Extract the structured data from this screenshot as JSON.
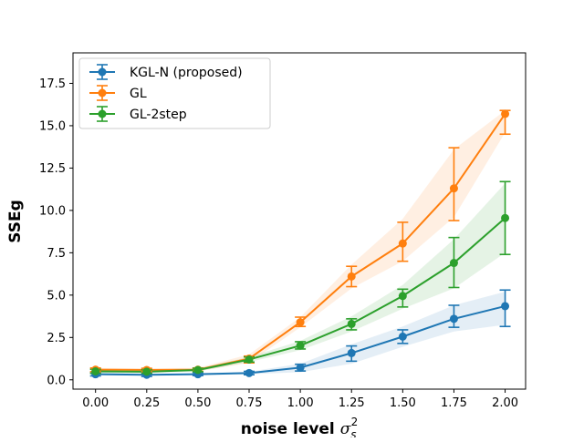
{
  "chart_data": {
    "type": "line",
    "title": "",
    "xlabel": "noise level",
    "xlabel_symbol": "σ",
    "xlabel_sup": "2",
    "xlabel_sub": "s",
    "ylabel": "SSEg",
    "xlim": [
      -0.11,
      2.1
    ],
    "ylim": [
      -0.55,
      19.3
    ],
    "grid": false,
    "legend_position": "top-left",
    "x": [
      0.0,
      0.25,
      0.5,
      0.75,
      1.0,
      1.25,
      1.5,
      1.75,
      2.0
    ],
    "x_tick_labels": [
      "0.00",
      "0.25",
      "0.50",
      "0.75",
      "1.00",
      "1.25",
      "1.50",
      "1.75",
      "2.00"
    ],
    "y_ticks": [
      0.0,
      2.5,
      5.0,
      7.5,
      10.0,
      12.5,
      15.0,
      17.5
    ],
    "y_tick_labels": [
      "0.0",
      "2.5",
      "5.0",
      "7.5",
      "10.0",
      "12.5",
      "15.0",
      "17.5"
    ],
    "series": [
      {
        "name": "KGL-N (proposed)",
        "color": "#1f77b4",
        "values": [
          0.33,
          0.3,
          0.33,
          0.4,
          0.72,
          1.58,
          2.55,
          3.6,
          4.35
        ],
        "err_low": [
          0.23,
          0.2,
          0.25,
          0.3,
          0.52,
          1.1,
          2.15,
          3.1,
          3.15
        ],
        "err_high": [
          0.43,
          0.42,
          0.43,
          0.5,
          0.92,
          2.0,
          2.95,
          4.4,
          5.3
        ],
        "band_low": [
          0.28,
          0.25,
          0.28,
          0.33,
          0.45,
          0.95,
          1.95,
          2.85,
          3.25
        ],
        "band_high": [
          0.4,
          0.36,
          0.4,
          0.48,
          0.95,
          2.1,
          3.15,
          4.4,
          5.2
        ]
      },
      {
        "name": "GL",
        "color": "#ff7f0e",
        "values": [
          0.6,
          0.58,
          0.6,
          1.25,
          3.4,
          6.1,
          8.05,
          11.3,
          15.7
        ],
        "err_low": [
          0.48,
          0.48,
          0.5,
          1.0,
          3.15,
          5.5,
          7.0,
          9.4,
          14.5
        ],
        "err_high": [
          0.7,
          0.68,
          0.7,
          1.4,
          3.7,
          6.7,
          9.3,
          13.7,
          15.9
        ],
        "band_low": [
          0.5,
          0.5,
          0.5,
          1.0,
          3.1,
          5.4,
          7.0,
          9.6,
          14.6
        ],
        "band_high": [
          0.7,
          0.68,
          0.7,
          1.5,
          3.7,
          6.8,
          9.5,
          13.6,
          15.9
        ]
      },
      {
        "name": "GL-2step",
        "color": "#2ca02c",
        "values": [
          0.5,
          0.48,
          0.58,
          1.2,
          2.02,
          3.3,
          4.95,
          6.9,
          9.55
        ],
        "err_low": [
          0.38,
          0.38,
          0.48,
          1.05,
          1.82,
          2.95,
          4.3,
          5.45,
          7.4
        ],
        "err_high": [
          0.62,
          0.6,
          0.68,
          1.35,
          2.25,
          3.6,
          5.35,
          8.4,
          11.7
        ],
        "band_low": [
          0.4,
          0.4,
          0.5,
          1.05,
          1.75,
          2.85,
          4.2,
          5.4,
          7.5
        ],
        "band_high": [
          0.6,
          0.58,
          0.66,
          1.35,
          2.3,
          3.75,
          5.6,
          8.3,
          11.6
        ]
      }
    ]
  }
}
